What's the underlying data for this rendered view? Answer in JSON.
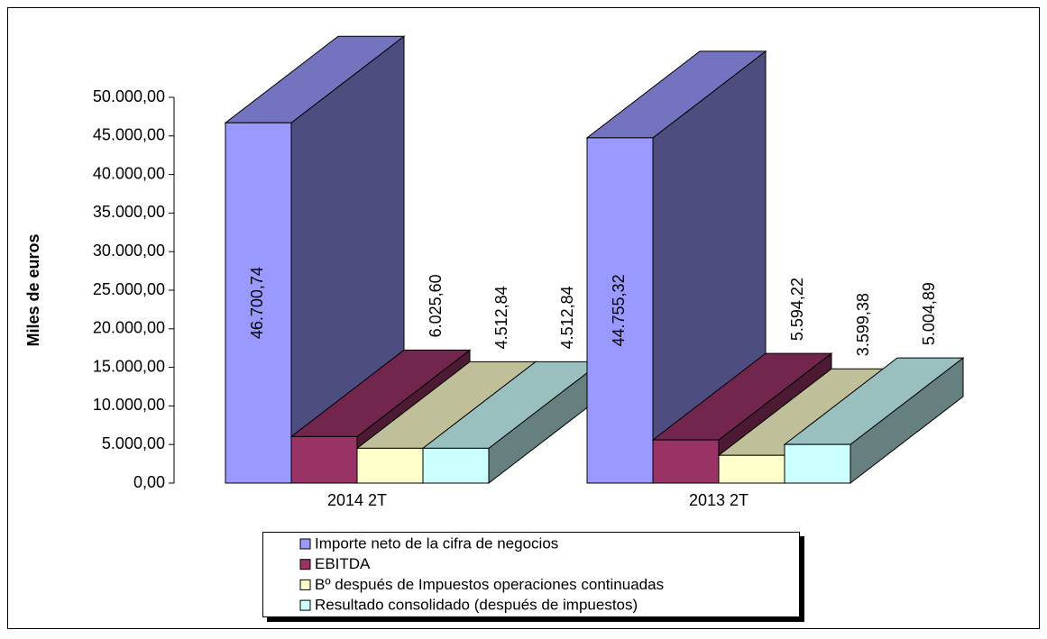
{
  "chart_data": {
    "type": "bar3d",
    "y_label": "Miles de euros",
    "categories": [
      "2014 2T",
      "2013 2T"
    ],
    "series": [
      {
        "name": "Importe neto de la cifra de negocios",
        "color": "#9999ff",
        "values": [
          46700.74,
          44755.32
        ],
        "value_labels": [
          "46.700,74",
          "44.755,32"
        ]
      },
      {
        "name": "EBITDA",
        "color": "#993366",
        "values": [
          6025.6,
          5594.22
        ],
        "value_labels": [
          "6.025,60",
          "5.594,22"
        ]
      },
      {
        "name": "Bº después de Impuestos operaciones continuadas",
        "color": "#ffffcc",
        "values": [
          4512.84,
          3599.38
        ],
        "value_labels": [
          "4.512,84",
          "3.599,38"
        ]
      },
      {
        "name": "Resultado consolidado (después de impuestos)",
        "color": "#ccffff",
        "values": [
          4512.84,
          5004.89
        ],
        "value_labels": [
          "4.512,84",
          "5.004,89"
        ]
      }
    ],
    "ylim": [
      0,
      50000
    ],
    "yticks": [
      {
        "value": 0,
        "label": "0,00"
      },
      {
        "value": 5000,
        "label": "5.000,00"
      },
      {
        "value": 10000,
        "label": "10.000,00"
      },
      {
        "value": 15000,
        "label": "15.000,00"
      },
      {
        "value": 20000,
        "label": "20.000,00"
      },
      {
        "value": 25000,
        "label": "25.000,00"
      },
      {
        "value": 30000,
        "label": "30.000,00"
      },
      {
        "value": 35000,
        "label": "35.000,00"
      },
      {
        "value": 40000,
        "label": "40.000,00"
      },
      {
        "value": 45000,
        "label": "45.000,00"
      },
      {
        "value": 50000,
        "label": "50.000,00"
      }
    ]
  }
}
